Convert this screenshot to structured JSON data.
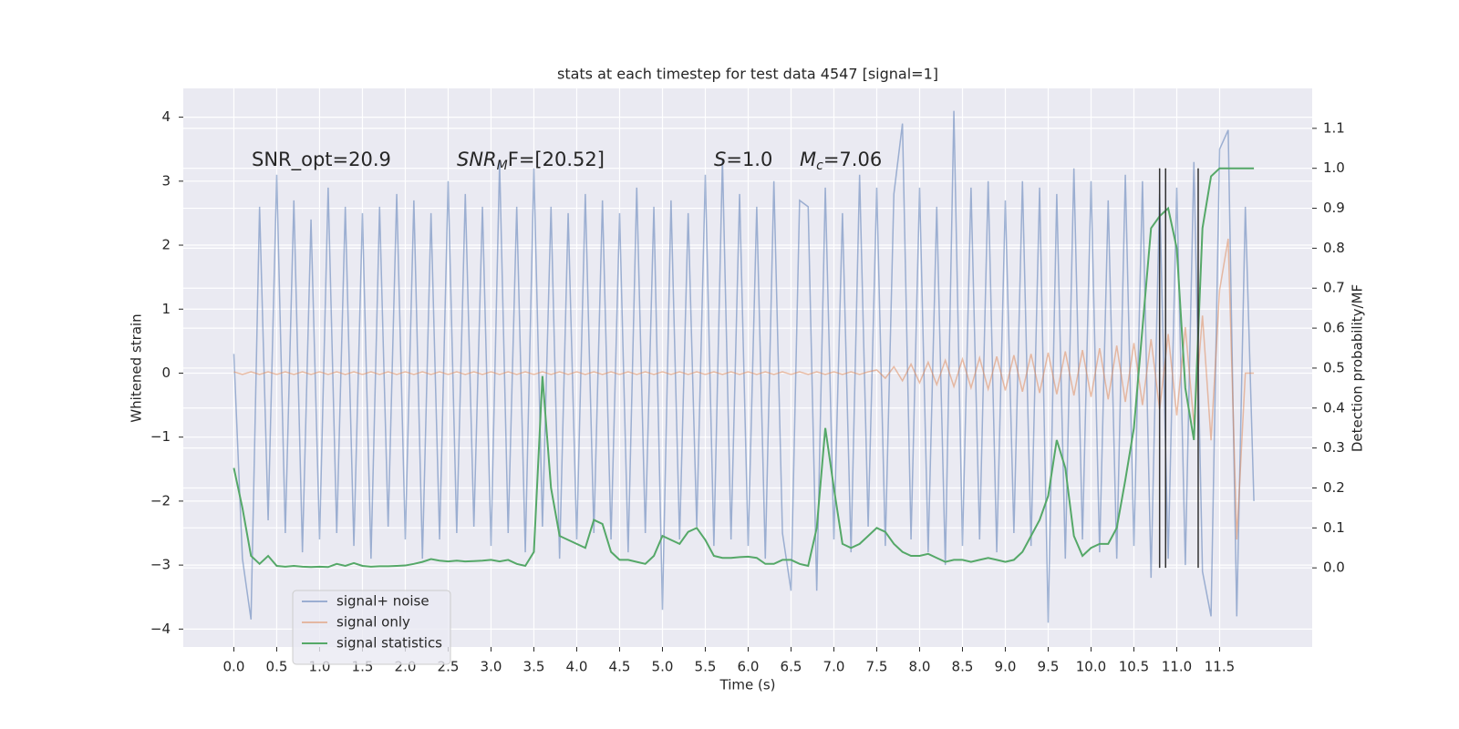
{
  "chart_data": {
    "type": "line",
    "title": "stats at each timestep for test data 4547 [signal=1]",
    "xlabel": "Time (s)",
    "ylabel": "Whitened strain",
    "y2label": "Detection probability/MF",
    "annotations": [
      {
        "rest": "SNR_opt=20.9"
      },
      {
        "italic": "SNR",
        "sub": "M",
        "rest": "F=[20.52]"
      },
      {
        "italic": "S",
        "rest": "=1.0"
      },
      {
        "italic": "M",
        "sub": "c",
        "rest": "=7.06"
      }
    ],
    "xlim": [
      -0.59,
      12.58
    ],
    "ylim": [
      -4.28,
      4.45
    ],
    "y2lim": [
      -0.198,
      1.2
    ],
    "xticks": [
      {
        "value": 0,
        "label": "0.0"
      },
      0.5,
      {
        "value": 1,
        "label": "1.0"
      },
      1.5,
      {
        "value": 2,
        "label": "2.0"
      },
      2.5,
      {
        "value": 3,
        "label": "3.0"
      },
      3.5,
      {
        "value": 4,
        "label": "4.0"
      },
      4.5,
      {
        "value": 5,
        "label": "5.0"
      },
      5.5,
      {
        "value": 6,
        "label": "6.0"
      },
      6.5,
      {
        "value": 7,
        "label": "7.0"
      },
      7.5,
      {
        "value": 8,
        "label": "8.0"
      },
      8.5,
      {
        "value": 9,
        "label": "9.0"
      },
      9.5,
      {
        "value": 10,
        "label": "10.0"
      },
      10.5,
      {
        "value": 11,
        "label": "11.0"
      },
      11.5
    ],
    "yticks": [
      {
        "value": -4,
        "label": "−4"
      },
      {
        "value": -3,
        "label": "−3"
      },
      {
        "value": -2,
        "label": "−2"
      },
      {
        "value": -1,
        "label": "−1"
      },
      0,
      1,
      2,
      3,
      4
    ],
    "y2ticks": [
      {
        "value": 0,
        "label": "0.0"
      },
      0.1,
      0.2,
      0.3,
      0.4,
      0.5,
      0.6,
      0.7,
      0.8,
      0.9,
      {
        "value": 1,
        "label": "1.0"
      },
      1.1
    ],
    "grid": true,
    "legend": "lower left",
    "x": [
      0,
      0.1,
      0.2,
      0.3,
      0.4,
      0.5,
      0.6,
      0.7,
      0.8,
      0.9,
      1,
      1.1,
      1.2,
      1.3,
      1.4,
      1.5,
      1.6,
      1.7,
      1.8,
      1.9,
      2,
      2.1,
      2.2,
      2.3,
      2.4,
      2.5,
      2.6,
      2.7,
      2.8,
      2.9,
      3,
      3.1,
      3.2,
      3.3,
      3.4,
      3.5,
      3.6,
      3.7,
      3.8,
      3.9,
      4,
      4.1,
      4.2,
      4.3,
      4.4,
      4.5,
      4.6,
      4.7,
      4.8,
      4.9,
      5,
      5.1,
      5.2,
      5.3,
      5.4,
      5.5,
      5.6,
      5.7,
      5.8,
      5.9,
      6,
      6.1,
      6.2,
      6.3,
      6.4,
      6.5,
      6.6,
      6.7,
      6.8,
      6.9,
      7,
      7.1,
      7.2,
      7.3,
      7.4,
      7.5,
      7.6,
      7.7,
      7.8,
      7.9,
      8,
      8.1,
      8.2,
      8.3,
      8.4,
      8.5,
      8.6,
      8.7,
      8.8,
      8.9,
      9,
      9.1,
      9.2,
      9.3,
      9.4,
      9.5,
      9.6,
      9.7,
      9.8,
      9.9,
      10,
      10.1,
      10.2,
      10.3,
      10.4,
      10.5,
      10.6,
      10.7,
      10.8,
      10.9,
      11,
      11.1,
      11.2,
      11.3,
      11.4,
      11.5,
      11.6,
      11.7,
      11.8,
      11.9
    ],
    "series": [
      {
        "name": "signal+ noise",
        "color": "#4c72b0",
        "values": [
          0.3,
          -2.9,
          -3.85,
          2.6,
          -2.3,
          3.1,
          -2.5,
          2.7,
          -2.8,
          2.4,
          -2.6,
          2.9,
          -2.5,
          2.6,
          -2.7,
          2.5,
          -2.9,
          2.6,
          -2.4,
          2.8,
          -2.6,
          2.7,
          -2.9,
          2.5,
          -2.6,
          3.0,
          -2.5,
          2.8,
          -2.4,
          2.6,
          -2.7,
          3.3,
          -2.5,
          2.6,
          -2.8,
          3.2,
          -2.4,
          2.6,
          -2.9,
          2.5,
          -2.6,
          2.8,
          -2.5,
          2.7,
          -2.6,
          2.5,
          -2.8,
          2.9,
          -2.5,
          2.6,
          -3.7,
          2.7,
          -2.6,
          2.5,
          -2.4,
          3.1,
          -2.7,
          3.35,
          -2.6,
          2.8,
          -2.7,
          2.6,
          -2.9,
          3.0,
          -2.5,
          -3.4,
          2.7,
          2.6,
          -3.4,
          2.9,
          -2.6,
          2.5,
          -2.8,
          3.1,
          -2.4,
          2.9,
          -2.7,
          2.8,
          3.9,
          -2.6,
          2.9,
          -2.8,
          2.6,
          -3.0,
          4.1,
          -2.7,
          2.9,
          -2.6,
          3.0,
          -2.8,
          2.7,
          -2.5,
          3.0,
          -2.7,
          2.9,
          -3.9,
          2.8,
          -2.9,
          3.2,
          -2.6,
          3.0,
          -2.8,
          2.7,
          -2.9,
          3.1,
          -2.7,
          3.0,
          -3.2,
          2.8,
          -2.9,
          2.9,
          -3.0,
          3.3,
          -3.1,
          -3.8,
          3.5,
          3.8,
          -3.8,
          2.6,
          -2.0
        ]
      },
      {
        "name": "signal only",
        "color": "#dd8452",
        "values": [
          0.02,
          -0.02,
          0.02,
          -0.02,
          0.02,
          -0.02,
          0.02,
          -0.02,
          0.02,
          -0.02,
          0.02,
          -0.02,
          0.02,
          -0.02,
          0.02,
          -0.02,
          0.02,
          -0.02,
          0.02,
          -0.02,
          0.02,
          -0.02,
          0.02,
          -0.02,
          0.02,
          -0.02,
          0.02,
          -0.02,
          0.02,
          -0.02,
          0.02,
          -0.02,
          0.02,
          -0.02,
          0.02,
          -0.02,
          0.02,
          -0.02,
          0.02,
          -0.02,
          0.02,
          -0.02,
          0.02,
          -0.02,
          0.02,
          -0.02,
          0.02,
          -0.02,
          0.02,
          -0.02,
          0.02,
          -0.02,
          0.02,
          -0.02,
          0.02,
          -0.02,
          0.02,
          -0.02,
          0.02,
          -0.02,
          0.02,
          -0.02,
          0.02,
          -0.02,
          0.02,
          -0.02,
          0.02,
          -0.02,
          0.02,
          -0.02,
          0.02,
          -0.02,
          0.02,
          -0.02,
          0.02,
          0.05,
          -0.08,
          0.1,
          -0.12,
          0.14,
          -0.15,
          0.17,
          -0.18,
          0.2,
          -0.21,
          0.22,
          -0.23,
          0.24,
          -0.25,
          0.26,
          -0.27,
          0.28,
          -0.29,
          0.3,
          -0.31,
          0.32,
          -0.33,
          0.34,
          -0.35,
          0.36,
          -0.37,
          0.39,
          -0.41,
          0.43,
          -0.45,
          0.47,
          -0.5,
          0.53,
          -0.57,
          0.61,
          -0.66,
          0.72,
          -0.8,
          0.9,
          -1.05,
          1.3,
          2.1,
          -2.6,
          0.0,
          0.0
        ]
      },
      {
        "name": "signal statistics",
        "color": "#55a868",
        "axis": "y2",
        "values": [
          0.25,
          0.15,
          0.03,
          0.01,
          0.03,
          0.005,
          0.003,
          0.005,
          0.003,
          0.002,
          0.003,
          0.002,
          0.01,
          0.005,
          0.012,
          0.005,
          0.003,
          0.004,
          0.004,
          0.005,
          0.006,
          0.01,
          0.015,
          0.022,
          0.018,
          0.016,
          0.018,
          0.016,
          0.017,
          0.018,
          0.02,
          0.016,
          0.02,
          0.01,
          0.005,
          0.04,
          0.48,
          0.2,
          0.08,
          0.07,
          0.06,
          0.05,
          0.12,
          0.11,
          0.04,
          0.02,
          0.02,
          0.015,
          0.01,
          0.03,
          0.08,
          0.07,
          0.06,
          0.09,
          0.1,
          0.07,
          0.03,
          0.025,
          0.025,
          0.027,
          0.028,
          0.025,
          0.01,
          0.01,
          0.02,
          0.02,
          0.01,
          0.005,
          0.1,
          0.35,
          0.2,
          0.06,
          0.05,
          0.06,
          0.08,
          0.1,
          0.09,
          0.06,
          0.04,
          0.03,
          0.03,
          0.035,
          0.025,
          0.015,
          0.02,
          0.02,
          0.015,
          0.02,
          0.025,
          0.02,
          0.015,
          0.02,
          0.04,
          0.08,
          0.12,
          0.18,
          0.32,
          0.25,
          0.08,
          0.03,
          0.05,
          0.06,
          0.06,
          0.1,
          0.22,
          0.35,
          0.6,
          0.85,
          0.88,
          0.9,
          0.8,
          0.45,
          0.32,
          0.85,
          0.98,
          1.0,
          1.0,
          1.0,
          1.0,
          1.0
        ]
      }
    ],
    "vlines": {
      "x": [
        10.8,
        10.87,
        11.25
      ],
      "span": [
        0,
        1
      ],
      "color": "#333333",
      "axis": "y2"
    }
  }
}
